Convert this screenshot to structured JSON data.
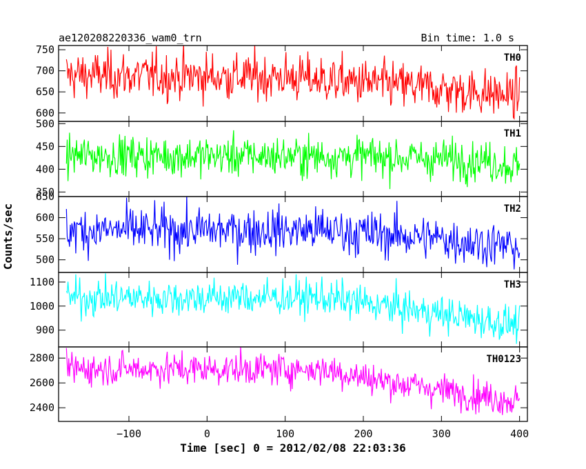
{
  "chart_data": {
    "type": "line",
    "title": "ae120208220336_wam0_trn",
    "bin_time_label": "Bin time: 1.0 s",
    "xlabel": "Time [sec] 0 = 2012/02/08 22:03:36",
    "ylabel": "Counts/sec",
    "xlim": [
      -190,
      410
    ],
    "x_ticks": [
      -100,
      0,
      100,
      200,
      300,
      400
    ],
    "x_tick_labels": [
      "−100",
      "0",
      "100",
      "200",
      "300",
      "400"
    ],
    "x_start": -180,
    "x_end": 400,
    "x_step": 1,
    "grid": false,
    "panels": [
      {
        "name": "TH0",
        "color": "#ff0000",
        "ylim": [
          580,
          760
        ],
        "y_ticks": [
          600,
          650,
          700,
          750
        ],
        "y_tick_labels": [
          "600",
          "650",
          "700",
          "750"
        ],
        "trend": [
          {
            "x": -180,
            "y": 690
          },
          {
            "x": 100,
            "y": 685
          },
          {
            "x": 250,
            "y": 665
          },
          {
            "x": 400,
            "y": 640
          }
        ],
        "noise_sd": 28
      },
      {
        "name": "TH1",
        "color": "#00ff00",
        "ylim": [
          340,
          505
        ],
        "y_ticks": [
          350,
          400,
          450,
          500
        ],
        "y_tick_labels": [
          "350",
          "400",
          "450",
          "500"
        ],
        "trend": [
          {
            "x": -180,
            "y": 430
          },
          {
            "x": 200,
            "y": 428
          },
          {
            "x": 350,
            "y": 420
          },
          {
            "x": 400,
            "y": 405
          }
        ],
        "noise_sd": 22
      },
      {
        "name": "TH2",
        "color": "#0000ff",
        "ylim": [
          470,
          650
        ],
        "y_ticks": [
          500,
          550,
          600,
          650
        ],
        "y_tick_labels": [
          "500",
          "550",
          "600",
          "650"
        ],
        "trend": [
          {
            "x": -180,
            "y": 570
          },
          {
            "x": 150,
            "y": 570
          },
          {
            "x": 300,
            "y": 550
          },
          {
            "x": 400,
            "y": 530
          }
        ],
        "noise_sd": 27
      },
      {
        "name": "TH3",
        "color": "#00ffff",
        "ylim": [
          830,
          1140
        ],
        "y_ticks": [
          900,
          1000,
          1100
        ],
        "y_tick_labels": [
          "900",
          "1000",
          "1100"
        ],
        "trend": [
          {
            "x": -180,
            "y": 1035
          },
          {
            "x": 150,
            "y": 1035
          },
          {
            "x": 250,
            "y": 990
          },
          {
            "x": 400,
            "y": 920
          }
        ],
        "noise_sd": 38
      },
      {
        "name": "TH0123",
        "color": "#ff00ff",
        "ylim": [
          2290,
          2890
        ],
        "y_ticks": [
          2400,
          2600,
          2800
        ],
        "y_tick_labels": [
          "2400",
          "2600",
          "2800"
        ],
        "trend": [
          {
            "x": -180,
            "y": 2715
          },
          {
            "x": 150,
            "y": 2710
          },
          {
            "x": 220,
            "y": 2620
          },
          {
            "x": 400,
            "y": 2450
          }
        ],
        "noise_sd": 65
      }
    ]
  }
}
